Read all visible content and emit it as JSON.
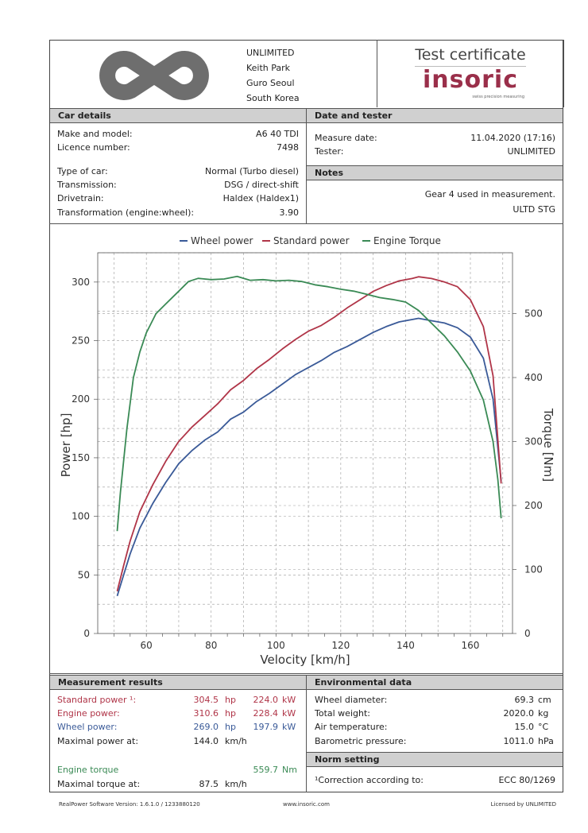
{
  "header": {
    "company": "UNLIMITED",
    "address_lines": [
      "Keith Park",
      "Guro Seoul",
      "South Korea"
    ],
    "certificate_title": "Test certificate",
    "brand": "insoric",
    "brand_tagline": "swiss precision measuring"
  },
  "car_details": {
    "title": "Car details",
    "rows1": [
      {
        "label": "Make and model:",
        "value": "A6 40 TDI"
      },
      {
        "label": "Licence number:",
        "value": "7498"
      }
    ],
    "rows2": [
      {
        "label": "Type of car:",
        "value": "Normal (Turbo diesel)"
      },
      {
        "label": "Transmission:",
        "value": "DSG / direct-shift"
      },
      {
        "label": "Drivetrain:",
        "value": "Haldex (Haldex1)"
      },
      {
        "label": "Transformation (engine:wheel):",
        "value": "3.90"
      }
    ]
  },
  "date_tester": {
    "title": "Date and tester",
    "rows": [
      {
        "label": "Measure date:",
        "value": "11.04.2020 (17:16)"
      },
      {
        "label": "Tester:",
        "value": "UNLIMITED"
      }
    ]
  },
  "notes": {
    "title": "Notes",
    "lines": [
      "Gear 4 used in measurement.",
      "ULTD STG"
    ]
  },
  "chart_data": {
    "type": "line",
    "xlabel": "Velocity [km/h]",
    "ylabel": "Power [hp]",
    "y2label": "Torque [Nm]",
    "xlim": [
      45,
      173
    ],
    "ylim": [
      0,
      325
    ],
    "y2lim": [
      0,
      595
    ],
    "xticks": [
      60,
      80,
      100,
      120,
      140,
      160
    ],
    "yticks": [
      0,
      50,
      100,
      150,
      200,
      250,
      300
    ],
    "y2ticks": [
      0,
      100,
      200,
      300,
      400,
      500
    ],
    "grid": true,
    "legend_position": "top",
    "series": [
      {
        "name": "Wheel power",
        "color": "#3a5a98",
        "axis": "left",
        "x": [
          51,
          53,
          55,
          58,
          62,
          66,
          70,
          74,
          78,
          82,
          86,
          90,
          94,
          98,
          102,
          106,
          110,
          114,
          118,
          122,
          126,
          130,
          134,
          138,
          142,
          144,
          148,
          152,
          156,
          160,
          164,
          167,
          169.5
        ],
        "y": [
          32,
          50,
          68,
          90,
          111,
          129,
          145,
          156,
          165,
          172,
          183,
          189,
          198,
          205,
          213,
          221,
          227,
          233,
          240,
          245,
          251,
          257,
          262,
          266,
          268,
          269,
          267,
          265,
          261,
          253,
          235,
          200,
          130
        ]
      },
      {
        "name": "Standard power",
        "color": "#b03548",
        "axis": "left",
        "x": [
          51,
          53,
          55,
          58,
          62,
          66,
          70,
          74,
          78,
          82,
          86,
          90,
          94,
          98,
          102,
          106,
          110,
          114,
          118,
          122,
          126,
          130,
          134,
          138,
          142,
          144,
          148,
          152,
          156,
          160,
          164,
          167,
          169.5
        ],
        "y": [
          36,
          58,
          79,
          104,
          127,
          147,
          164,
          176,
          186,
          196,
          208,
          216,
          226,
          234,
          243,
          251,
          258,
          263,
          270,
          278,
          285,
          292,
          297,
          301,
          303,
          304.5,
          303,
          300,
          296,
          285,
          262,
          220,
          128
        ]
      },
      {
        "name": "Engine Torque",
        "color": "#3a8a55",
        "axis": "right",
        "x": [
          51,
          52,
          54,
          56,
          58,
          60,
          63,
          66,
          70,
          73,
          76,
          80,
          84,
          88,
          92,
          96,
          100,
          104,
          108,
          112,
          116,
          120,
          124,
          128,
          132,
          136,
          140,
          144,
          148,
          152,
          156,
          160,
          164,
          167,
          168.5,
          169.5
        ],
        "y": [
          160,
          220,
          320,
          400,
          440,
          470,
          500,
          515,
          535,
          550,
          555,
          553,
          554,
          558,
          552,
          553,
          551,
          552,
          550,
          545,
          542,
          538,
          535,
          530,
          525,
          522,
          518,
          505,
          485,
          465,
          440,
          410,
          365,
          300,
          240,
          180
        ]
      }
    ]
  },
  "measurement": {
    "title": "Measurement results",
    "rows": [
      {
        "label": "Standard power ¹:",
        "v1": "304.5",
        "u1": "hp",
        "v2": "224.0",
        "u2": "kW",
        "color": "#b03548"
      },
      {
        "label": "Engine power:",
        "v1": "310.6",
        "u1": "hp",
        "v2": "228.4",
        "u2": "kW",
        "color": "#b03548"
      },
      {
        "label": "Wheel power:",
        "v1": "269.0",
        "u1": "hp",
        "v2": "197.9",
        "u2": "kW",
        "color": "#3a5a98"
      },
      {
        "label": "Maximal power at:",
        "v1": "144.0",
        "u1": "km/h",
        "v2": "",
        "u2": "",
        "color": "#222222"
      }
    ],
    "torque": {
      "label": "Engine torque",
      "value": "559.7",
      "unit": "Nm",
      "color": "#3a8a55"
    },
    "max_torque": {
      "label": "Maximal torque at:",
      "value": "87.5",
      "unit": "km/h"
    }
  },
  "environment": {
    "title": "Environmental data",
    "rows": [
      {
        "label": "Wheel diameter:",
        "value": "69.3",
        "unit": "cm"
      },
      {
        "label": "Total weight:",
        "value": "2020.0",
        "unit": "kg"
      },
      {
        "label": "Air temperature:",
        "value": "15.0",
        "unit": "°C"
      },
      {
        "label": "Barometric pressure:",
        "value": "1011.0",
        "unit": "hPa"
      }
    ]
  },
  "norm": {
    "title": "Norm setting",
    "label": "¹Correction according to:",
    "value": "ECC 80/1269"
  },
  "footer": {
    "left": "RealPower Software Version: 1.6.1.0 / 1233880120",
    "center": "www.insoric.com",
    "right": "Licensed by UNLIMITED"
  }
}
